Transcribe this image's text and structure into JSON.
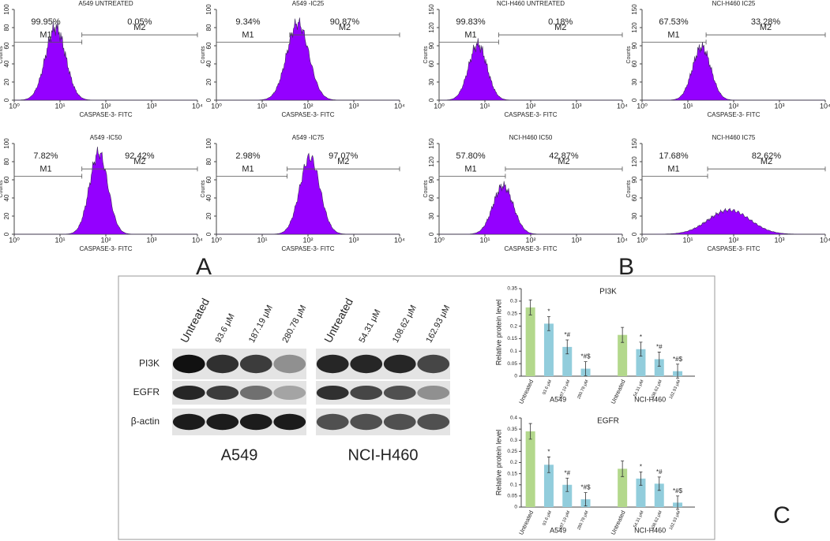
{
  "chart_data": [
    {
      "type": "flow",
      "title": "A549 UNTREATED",
      "ylabel": "Counts",
      "xlabel": "CASPASE-3- FITC",
      "log_x": true,
      "xlim": [
        1,
        10000
      ],
      "xticks": [
        {
          "value": 1,
          "label": "10⁰"
        },
        {
          "value": 10,
          "label": "10¹"
        },
        {
          "value": 100,
          "label": "10²"
        },
        {
          "value": 1000,
          "label": "10³"
        },
        {
          "value": 10000,
          "label": "10⁴"
        }
      ],
      "ylim": [
        0,
        100
      ],
      "yticks": [
        0,
        20,
        40,
        60,
        80,
        100
      ],
      "color": "#9400ff",
      "peak": [
        8,
        80
      ],
      "spread": 0.22,
      "gates": [
        {
          "name": "M1",
          "value": 99.95,
          "value_label": "99.95%",
          "range": [
            1,
            30
          ]
        },
        {
          "name": "M2",
          "value": 0.05,
          "value_label": "0.05%",
          "range": [
            30,
            10000
          ]
        }
      ]
    },
    {
      "type": "flow",
      "title": "A549 -IC25",
      "ylabel": "Counts",
      "xlabel": "CASPASE-3- FITC",
      "log_x": true,
      "xlim": [
        1,
        10000
      ],
      "xticks": [
        {
          "value": 1,
          "label": "10⁰"
        },
        {
          "value": 10,
          "label": "10¹"
        },
        {
          "value": 100,
          "label": "10²"
        },
        {
          "value": 1000,
          "label": "10³"
        },
        {
          "value": 10000,
          "label": "10⁴"
        }
      ],
      "ylim": [
        0,
        100
      ],
      "yticks": [
        0,
        20,
        40,
        60,
        80,
        100
      ],
      "color": "#9400ff",
      "peak": [
        60,
        85
      ],
      "spread": 0.24,
      "gates": [
        {
          "name": "M1",
          "value": 9.34,
          "value_label": "9.34%",
          "range": [
            1,
            40
          ]
        },
        {
          "name": "M2",
          "value": 90.87,
          "value_label": "90.87%",
          "range": [
            40,
            10000
          ]
        }
      ]
    },
    {
      "type": "flow",
      "title": "NCI-H460 UNTREATED",
      "ylabel": "Counts",
      "xlabel": "CASPASE-3- FITC",
      "log_x": true,
      "xlim": [
        1,
        10000
      ],
      "xticks": [
        {
          "value": 1,
          "label": "10⁰"
        },
        {
          "value": 10,
          "label": "10¹"
        },
        {
          "value": 100,
          "label": "10²"
        },
        {
          "value": 1000,
          "label": "10³"
        },
        {
          "value": 10000,
          "label": "10⁴"
        }
      ],
      "ylim": [
        0,
        150
      ],
      "yticks": [
        0,
        30,
        60,
        90,
        120,
        150
      ],
      "color": "#9400ff",
      "peak": [
        7,
        92
      ],
      "spread": 0.2,
      "gates": [
        {
          "name": "M1",
          "value": 99.83,
          "value_label": "99.83%",
          "range": [
            1,
            20
          ]
        },
        {
          "name": "M2",
          "value": 0.18,
          "value_label": "0.18%",
          "range": [
            20,
            10000
          ]
        }
      ]
    },
    {
      "type": "flow",
      "title": "NCI-H460  IC25",
      "ylabel": "Counts",
      "xlabel": "CASPASE-3- FITC",
      "log_x": true,
      "xlim": [
        1,
        10000
      ],
      "xticks": [
        {
          "value": 1,
          "label": "10⁰"
        },
        {
          "value": 10,
          "label": "10¹"
        },
        {
          "value": 100,
          "label": "10²"
        },
        {
          "value": 1000,
          "label": "10³"
        },
        {
          "value": 10000,
          "label": "10⁴"
        }
      ],
      "ylim": [
        0,
        150
      ],
      "yticks": [
        0,
        30,
        60,
        90,
        120,
        150
      ],
      "color": "#9400ff",
      "peak": [
        20,
        88
      ],
      "spread": 0.2,
      "gates": [
        {
          "name": "M1",
          "value": 67.53,
          "value_label": "67.53%",
          "range": [
            1,
            25
          ]
        },
        {
          "name": "M2",
          "value": 33.28,
          "value_label": "33.28%",
          "range": [
            25,
            10000
          ]
        }
      ]
    },
    {
      "type": "flow",
      "title": "A549 -IC50",
      "ylabel": "Counts",
      "xlabel": "CASPASE-3- FITC",
      "log_x": true,
      "xlim": [
        1,
        10000
      ],
      "xticks": [
        {
          "value": 1,
          "label": "10⁰"
        },
        {
          "value": 10,
          "label": "10¹"
        },
        {
          "value": 100,
          "label": "10²"
        },
        {
          "value": 1000,
          "label": "10³"
        },
        {
          "value": 10000,
          "label": "10⁴"
        }
      ],
      "ylim": [
        0,
        100
      ],
      "yticks": [
        0,
        20,
        40,
        60,
        80,
        100
      ],
      "color": "#9400ff",
      "peak": [
        70,
        90
      ],
      "spread": 0.2,
      "gates": [
        {
          "name": "M1",
          "value": 7.82,
          "value_label": "7.82%",
          "range": [
            1,
            30
          ]
        },
        {
          "name": "M2",
          "value": 92.42,
          "value_label": "92.42%",
          "range": [
            30,
            10000
          ]
        }
      ]
    },
    {
      "type": "flow",
      "title": "A549 -IC75",
      "ylabel": "Counts",
      "xlabel": "CASPASE-3- FITC",
      "log_x": true,
      "xlim": [
        1,
        10000
      ],
      "xticks": [
        {
          "value": 1,
          "label": "10⁰"
        },
        {
          "value": 10,
          "label": "10¹"
        },
        {
          "value": 100,
          "label": "10²"
        },
        {
          "value": 1000,
          "label": "10³"
        },
        {
          "value": 10000,
          "label": "10⁴"
        }
      ],
      "ylim": [
        0,
        100
      ],
      "yticks": [
        0,
        20,
        40,
        60,
        80,
        100
      ],
      "color": "#9400ff",
      "peak": [
        110,
        85
      ],
      "spread": 0.22,
      "gates": [
        {
          "name": "M1",
          "value": 2.98,
          "value_label": "2.98%",
          "range": [
            1,
            35
          ]
        },
        {
          "name": "M2",
          "value": 97.07,
          "value_label": "97.07%",
          "range": [
            35,
            10000
          ]
        }
      ]
    },
    {
      "type": "flow",
      "title": "NCI-H460  IC50",
      "ylabel": "Counts",
      "xlabel": "CASPASE-3- FITC",
      "log_x": true,
      "xlim": [
        1,
        10000
      ],
      "xticks": [
        {
          "value": 1,
          "label": "10⁰"
        },
        {
          "value": 10,
          "label": "10¹"
        },
        {
          "value": 100,
          "label": "10²"
        },
        {
          "value": 1000,
          "label": "10³"
        },
        {
          "value": 10000,
          "label": "10⁴"
        }
      ],
      "ylim": [
        0,
        150
      ],
      "yticks": [
        0,
        30,
        60,
        90,
        120,
        150
      ],
      "color": "#9400ff",
      "peak": [
        25,
        80
      ],
      "spread": 0.22,
      "gates": [
        {
          "name": "M1",
          "value": 57.8,
          "value_label": "57.80%",
          "range": [
            1,
            28
          ]
        },
        {
          "name": "M2",
          "value": 42.87,
          "value_label": "42.87%",
          "range": [
            28,
            10000
          ]
        }
      ]
    },
    {
      "type": "flow",
      "title": "NCI-H460  IC75",
      "ylabel": "Counts",
      "xlabel": "CASPASE-3- FITC",
      "log_x": true,
      "xlim": [
        1,
        10000
      ],
      "xticks": [
        {
          "value": 1,
          "label": "10⁰"
        },
        {
          "value": 10,
          "label": "10¹"
        },
        {
          "value": 100,
          "label": "10²"
        },
        {
          "value": 1000,
          "label": "10³"
        },
        {
          "value": 10000,
          "label": "10⁴"
        }
      ],
      "ylim": [
        0,
        150
      ],
      "yticks": [
        0,
        30,
        60,
        90,
        120,
        150
      ],
      "color": "#9400ff",
      "peak": [
        80,
        40
      ],
      "spread": 0.45,
      "gates": [
        {
          "name": "M1",
          "value": 17.68,
          "value_label": "17.68%",
          "range": [
            1,
            27
          ]
        },
        {
          "name": "M2",
          "value": 82.62,
          "value_label": "82.62%",
          "range": [
            27,
            10000
          ]
        }
      ]
    },
    {
      "type": "bar",
      "title": "PI3K",
      "ylabel": "Relative protein level",
      "ylim": [
        0,
        0.35
      ],
      "yticks": [
        0,
        0.05,
        0.1,
        0.15,
        0.2,
        0.25,
        0.3,
        0.35
      ],
      "groups": [
        {
          "name": "A549",
          "categories": [
            "Untreated",
            "93.6 μM",
            "187.19 μM",
            "280.78 μM"
          ],
          "values": [
            0.275,
            0.21,
            0.117,
            0.03
          ],
          "errors": [
            0.03,
            0.028,
            0.028,
            0.028
          ],
          "annotations": [
            null,
            "*",
            "*#",
            "*#$"
          ],
          "colors": [
            "#b3d88c",
            "#92cddc",
            "#92cddc",
            "#92cddc"
          ]
        },
        {
          "name": "NCI-H460",
          "categories": [
            "Untreated",
            "54.31 μM",
            "108.62 μM",
            "162.93 μM"
          ],
          "values": [
            0.165,
            0.108,
            0.068,
            0.02
          ],
          "errors": [
            0.03,
            0.028,
            0.028,
            0.028
          ],
          "annotations": [
            null,
            "*",
            "*#",
            "*#$"
          ],
          "colors": [
            "#b3d88c",
            "#92cddc",
            "#92cddc",
            "#92cddc"
          ]
        }
      ]
    },
    {
      "type": "bar",
      "title": "EGFR",
      "ylabel": "Relative protein level",
      "ylim": [
        0,
        0.4
      ],
      "yticks": [
        0,
        0.05,
        0.1,
        0.15,
        0.2,
        0.25,
        0.3,
        0.35,
        0.4
      ],
      "groups": [
        {
          "name": "A549",
          "categories": [
            "Untreated",
            "93.6 μM",
            "187.19 μM",
            "280.78 μM"
          ],
          "values": [
            0.34,
            0.19,
            0.1,
            0.035
          ],
          "errors": [
            0.035,
            0.035,
            0.03,
            0.03
          ],
          "annotations": [
            null,
            "*",
            "*#",
            "*#$"
          ],
          "colors": [
            "#b3d88c",
            "#92cddc",
            "#92cddc",
            "#92cddc"
          ]
        },
        {
          "name": "NCI-H460",
          "categories": [
            "Untreated",
            "54.31 μM",
            "108.62 μM",
            "162.93 μM"
          ],
          "values": [
            0.172,
            0.128,
            0.105,
            0.02
          ],
          "errors": [
            0.035,
            0.03,
            0.03,
            0.03
          ],
          "annotations": [
            null,
            "*",
            "*#",
            "*#$"
          ],
          "colors": [
            "#b3d88c",
            "#92cddc",
            "#92cddc",
            "#92cddc"
          ]
        }
      ]
    }
  ],
  "blot": {
    "proteins": [
      "PI3K",
      "EGFR",
      "β-actin"
    ],
    "cell_lines": [
      {
        "name": "A549",
        "lanes": [
          "Untreated",
          "93.6 μM",
          "187.19 μM",
          "280.78 μM"
        ],
        "bands": [
          [
            1,
            0.85,
            0.8,
            0.4
          ],
          [
            0.9,
            0.8,
            0.55,
            0.3
          ],
          [
            0.95,
            0.95,
            0.95,
            0.95
          ]
        ]
      },
      {
        "name": "NCI-H460",
        "lanes": [
          "Untreated",
          "54.31 μM",
          "108.62 μM",
          "162.93 μM"
        ],
        "bands": [
          [
            0.9,
            0.9,
            0.9,
            0.75
          ],
          [
            0.85,
            0.75,
            0.7,
            0.4
          ],
          [
            0.7,
            0.7,
            0.7,
            0.7
          ]
        ]
      }
    ]
  },
  "panel_labels": [
    "A",
    "B",
    "C"
  ]
}
